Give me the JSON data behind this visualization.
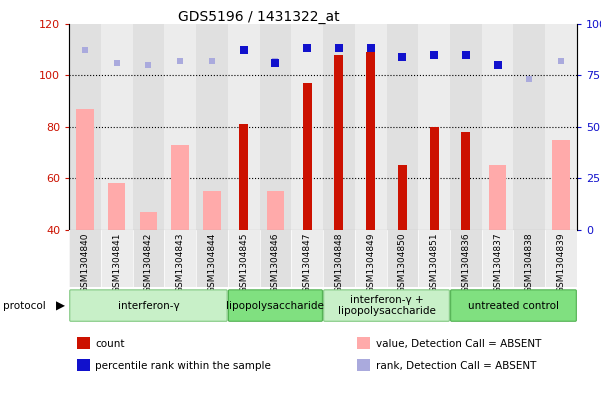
{
  "title": "GDS5196 / 1431322_at",
  "samples": [
    "GSM1304840",
    "GSM1304841",
    "GSM1304842",
    "GSM1304843",
    "GSM1304844",
    "GSM1304845",
    "GSM1304846",
    "GSM1304847",
    "GSM1304848",
    "GSM1304849",
    "GSM1304850",
    "GSM1304851",
    "GSM1304836",
    "GSM1304837",
    "GSM1304838",
    "GSM1304839"
  ],
  "count_values": [
    null,
    null,
    null,
    null,
    null,
    81,
    null,
    97,
    108,
    109,
    65,
    80,
    78,
    null,
    null,
    null
  ],
  "rank_values": [
    null,
    null,
    null,
    null,
    null,
    87,
    81,
    88,
    88,
    88,
    84,
    85,
    85,
    80,
    null,
    null
  ],
  "absent_value_values": [
    87,
    58,
    47,
    73,
    55,
    null,
    55,
    null,
    null,
    null,
    null,
    null,
    null,
    65,
    40,
    75
  ],
  "absent_rank_values": [
    87,
    81,
    80,
    82,
    82,
    null,
    82,
    null,
    null,
    null,
    null,
    null,
    null,
    null,
    73,
    82
  ],
  "protocols": [
    {
      "label": "interferon-γ",
      "start": 0,
      "end": 4,
      "color": "#c8f0c8",
      "border": "#80c880"
    },
    {
      "label": "lipopolysaccharide",
      "start": 5,
      "end": 7,
      "color": "#80e080",
      "border": "#50b050"
    },
    {
      "label": "interferon-γ +\nlipopolysaccharide",
      "start": 8,
      "end": 11,
      "color": "#c8f0c8",
      "border": "#80c880"
    },
    {
      "label": "untreated control",
      "start": 12,
      "end": 15,
      "color": "#80e080",
      "border": "#50b050"
    }
  ],
  "left_ylim": [
    40,
    120
  ],
  "left_yticks": [
    40,
    60,
    80,
    100,
    120
  ],
  "right_ylim": [
    0,
    100
  ],
  "right_yticks": [
    0,
    25,
    50,
    75,
    100
  ],
  "count_color": "#cc1100",
  "rank_color": "#1111cc",
  "absent_value_color": "#ffaaaa",
  "absent_rank_color": "#aaaadd",
  "left_tick_color": "#cc1100",
  "right_tick_color": "#1111cc",
  "col_even": "#e0e0e0",
  "col_odd": "#ececec",
  "legend_items": [
    {
      "label": "count",
      "color": "#cc1100"
    },
    {
      "label": "percentile rank within the sample",
      "color": "#1111cc"
    },
    {
      "label": "value, Detection Call = ABSENT",
      "color": "#ffaaaa"
    },
    {
      "label": "rank, Detection Call = ABSENT",
      "color": "#aaaadd"
    }
  ]
}
